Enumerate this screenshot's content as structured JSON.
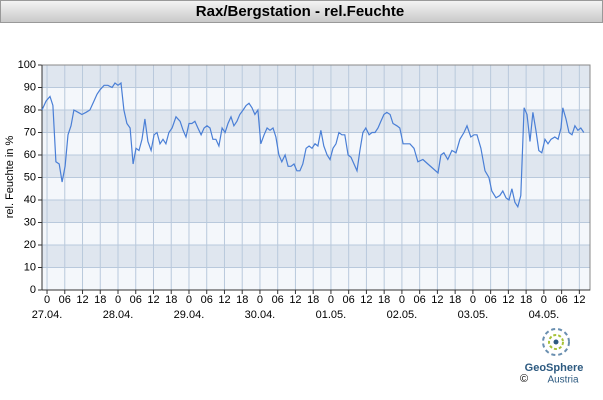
{
  "chart_data": {
    "type": "line",
    "title": "Rax/Bergstation - rel.Feuchte",
    "ylabel": "rel. Feuchte in %",
    "color": "#4a7fd6",
    "grid": true,
    "xlim": [
      -1.7,
      183.6
    ],
    "ylim": [
      0,
      100
    ],
    "yticks": [
      0,
      10,
      20,
      30,
      40,
      50,
      60,
      70,
      80,
      90,
      100
    ],
    "xticks": [
      0,
      {
        "value": 6,
        "label": "06"
      },
      12,
      18,
      {
        "value": 24,
        "label": "0"
      },
      {
        "value": 30,
        "label": "06"
      },
      {
        "value": 36,
        "label": "12"
      },
      {
        "value": 42,
        "label": "18"
      },
      {
        "value": 48,
        "label": "0"
      },
      {
        "value": 54,
        "label": "06"
      },
      {
        "value": 60,
        "label": "12"
      },
      {
        "value": 66,
        "label": "18"
      },
      {
        "value": 72,
        "label": "0"
      },
      {
        "value": 78,
        "label": "06"
      },
      {
        "value": 84,
        "label": "12"
      },
      {
        "value": 90,
        "label": "18"
      },
      {
        "value": 96,
        "label": "0"
      },
      {
        "value": 102,
        "label": "06"
      },
      {
        "value": 108,
        "label": "12"
      },
      {
        "value": 114,
        "label": "18"
      },
      {
        "value": 120,
        "label": "0"
      },
      {
        "value": 126,
        "label": "06"
      },
      {
        "value": 132,
        "label": "12"
      },
      {
        "value": 138,
        "label": "18"
      },
      {
        "value": 144,
        "label": "0"
      },
      {
        "value": 150,
        "label": "06"
      },
      {
        "value": 156,
        "label": "12"
      },
      {
        "value": 162,
        "label": "18"
      },
      {
        "value": 168,
        "label": "0"
      },
      {
        "value": 174,
        "label": "06"
      },
      {
        "value": 180,
        "label": "12"
      }
    ],
    "xdates": [
      {
        "value": 0,
        "label": "27.04."
      },
      {
        "value": 24,
        "label": "28.04."
      },
      {
        "value": 48,
        "label": "29.04."
      },
      {
        "value": 72,
        "label": "30.04."
      },
      {
        "value": 96,
        "label": "01.05."
      },
      {
        "value": 120,
        "label": "02.05."
      },
      {
        "value": 144,
        "label": "03.05."
      },
      {
        "value": 168,
        "label": "04.05."
      }
    ],
    "x": [
      -1.7,
      -0.3,
      1.0,
      2.0,
      3.0,
      4.1,
      5.1,
      6.1,
      7.1,
      8.1,
      9.1,
      10.5,
      11.8,
      13.2,
      14.5,
      15.9,
      16.9,
      17.9,
      19.3,
      20.6,
      22.0,
      23.0,
      24.0,
      25.0,
      26.0,
      27.0,
      28.1,
      29.1,
      30.1,
      31.1,
      32.1,
      33.1,
      34.1,
      35.2,
      36.2,
      37.2,
      38.2,
      39.2,
      40.2,
      41.2,
      42.3,
      43.6,
      45.0,
      46.0,
      47.0,
      48.0,
      49.0,
      50.0,
      51.0,
      52.1,
      53.1,
      54.1,
      55.1,
      56.1,
      57.1,
      58.1,
      59.2,
      60.2,
      61.2,
      62.2,
      63.2,
      64.2,
      65.2,
      66.3,
      67.3,
      68.3,
      69.3,
      70.3,
      71.3,
      72.3,
      73.4,
      74.4,
      75.4,
      76.4,
      77.4,
      78.4,
      79.4,
      80.5,
      81.5,
      82.5,
      83.5,
      84.5,
      85.5,
      86.5,
      87.6,
      88.6,
      89.6,
      90.6,
      91.6,
      92.6,
      93.6,
      94.7,
      95.7,
      96.7,
      97.7,
      98.7,
      99.7,
      100.7,
      101.8,
      102.8,
      103.8,
      104.8,
      105.8,
      106.8,
      107.8,
      108.9,
      109.9,
      110.9,
      111.9,
      112.9,
      113.9,
      114.9,
      116.0,
      117.0,
      118.3,
      119.3,
      120.4,
      121.7,
      122.7,
      124.1,
      125.4,
      127.1,
      128.8,
      130.5,
      132.2,
      133.2,
      134.2,
      135.5,
      136.9,
      138.3,
      139.6,
      141.0,
      142.0,
      143.3,
      144.4,
      145.4,
      146.7,
      148.1,
      149.4,
      150.4,
      151.8,
      153.1,
      154.1,
      155.2,
      156.2,
      157.2,
      158.2,
      159.2,
      160.2,
      161.3,
      162.3,
      163.3,
      164.3,
      165.3,
      166.3,
      167.3,
      168.4,
      169.4,
      170.4,
      171.7,
      172.8,
      173.8,
      174.4,
      175.5,
      176.5,
      177.5,
      178.5,
      179.5,
      180.5,
      181.5
    ],
    "values": [
      80,
      84,
      86,
      82,
      57,
      56,
      48,
      55,
      69,
      73,
      80,
      79,
      78,
      79,
      80,
      84,
      87,
      89,
      91,
      91,
      90,
      92,
      91,
      92,
      80,
      74,
      72,
      56,
      63,
      62,
      67,
      76,
      66,
      62,
      69,
      70,
      65,
      67,
      65,
      70,
      72,
      77,
      75,
      71,
      68,
      74,
      74,
      75,
      72,
      69,
      72,
      73,
      72,
      67,
      67,
      64,
      72,
      70,
      74,
      77,
      73,
      75,
      78,
      80,
      82,
      83,
      81,
      78,
      80,
      65,
      69,
      72,
      71,
      72,
      68,
      60,
      57,
      60,
      55,
      55,
      56,
      53,
      53,
      56,
      63,
      64,
      63,
      65,
      64,
      71,
      64,
      60,
      58,
      63,
      65,
      70,
      69,
      69,
      60,
      59,
      56,
      53,
      62,
      70,
      72,
      69,
      70,
      70,
      72,
      75,
      78,
      79,
      78,
      74,
      73,
      72,
      65,
      65,
      65,
      63,
      57,
      58,
      56,
      54,
      52,
      60,
      61,
      58,
      62,
      61,
      67,
      70,
      73,
      68,
      69,
      69,
      63,
      53,
      50,
      44,
      41,
      42,
      44,
      41,
      40,
      45,
      39,
      37,
      42,
      81,
      78,
      66,
      79,
      71,
      62,
      61,
      67,
      65,
      67,
      68,
      67,
      72,
      81,
      76,
      70,
      69,
      73,
      71,
      72,
      70
    ]
  },
  "footer": {
    "brand": "GeoSphere",
    "country": "Austria",
    "copyright": "©"
  }
}
